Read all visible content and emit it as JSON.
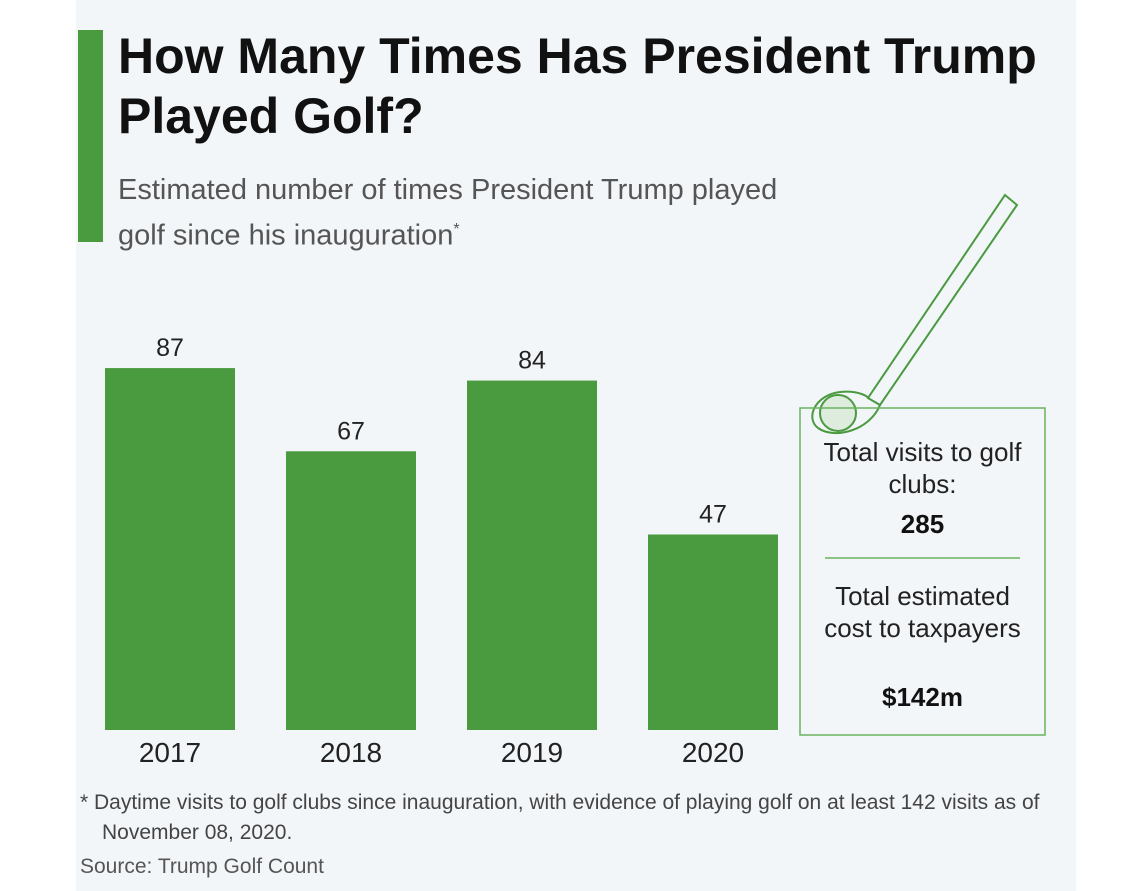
{
  "chart_data": {
    "type": "bar",
    "title": "How Many Times Has President Trump Played Golf?",
    "subtitle": "Estimated number of times President Trump played golf since his inauguration",
    "subtitle_marker": "*",
    "categories": [
      "2017",
      "2018",
      "2019",
      "2020"
    ],
    "values": [
      87,
      67,
      84,
      47
    ],
    "color": "#4a9a3f",
    "annotations": [
      {
        "label": "Total visits to golf clubs:",
        "value": 285
      },
      {
        "label": "Total estimated cost to taxpayers",
        "value": "$142m"
      }
    ],
    "note": "* Daytime visits to golf clubs since inauguration, with evidence of playing golf on at least 142 visits as of November 08, 2020.",
    "source": "Source: Trump Golf Count"
  }
}
